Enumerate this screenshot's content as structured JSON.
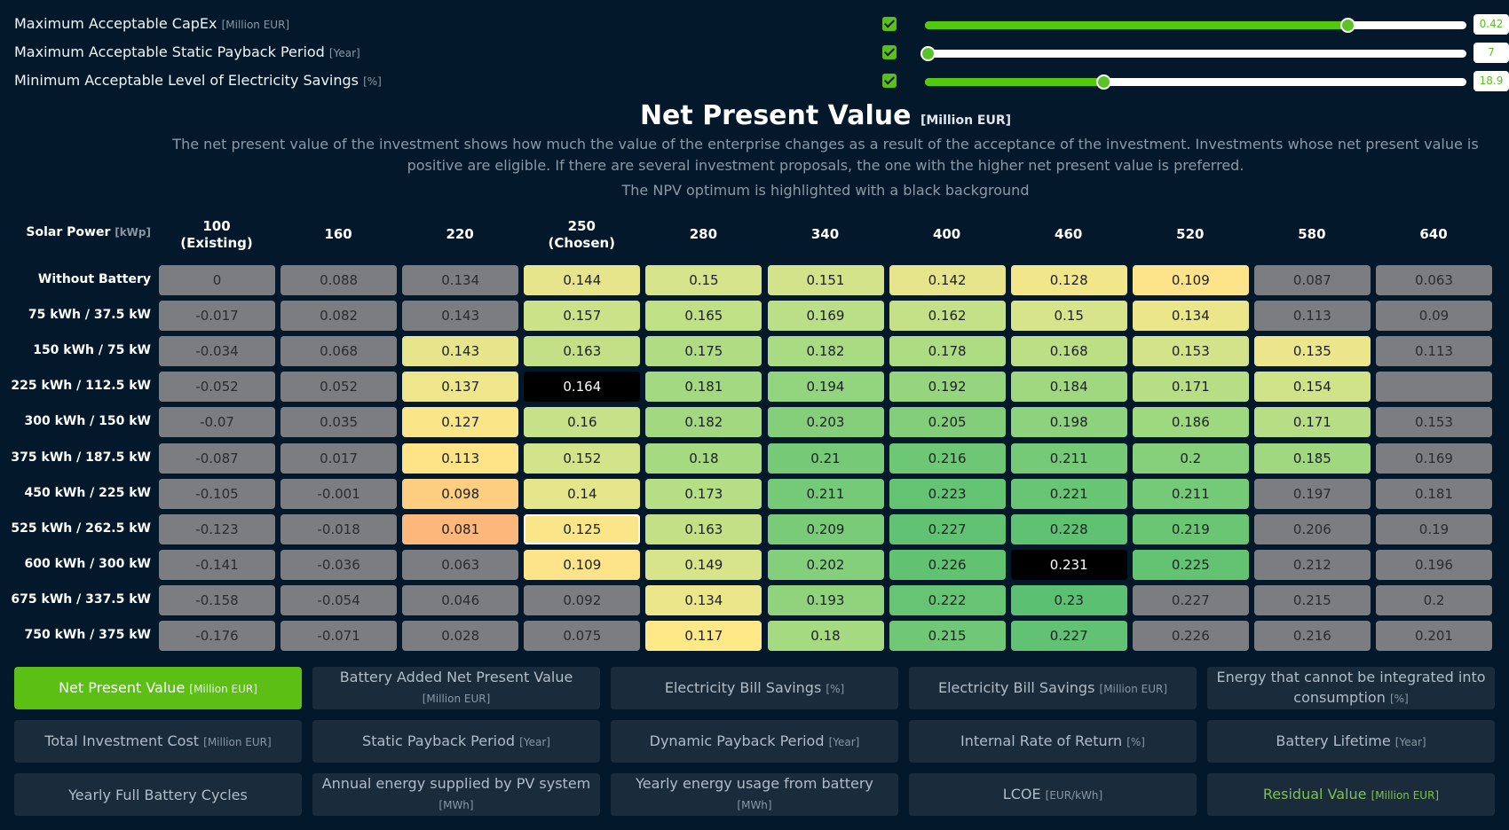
{
  "constraints": [
    {
      "label": "Maximum Acceptable CapEx",
      "unit": "[Million EUR]",
      "checked": true,
      "fraction": 0.78,
      "value": "0.42"
    },
    {
      "label": "Maximum Acceptable Static Payback Period",
      "unit": "[Year]",
      "checked": true,
      "fraction": 0.0,
      "value": "7"
    },
    {
      "label": "Minimum Acceptable Level of Electricity Savings",
      "unit": "[%]",
      "checked": true,
      "fraction": 0.33,
      "value": "18.9"
    }
  ],
  "header": {
    "title": "Net Present Value",
    "title_unit": "[Million EUR]",
    "description": "The net present value of the investment shows how much the value of the enterprise changes as a result of the acceptance of the investment. Investments whose net present value is positive are eligible. If there are several investment proposals, the one with the higher net present value is preferred.",
    "optimum_note": "The NPV optimum is highlighted with a black background"
  },
  "matrix": {
    "corner_label": "Solar Power",
    "corner_unit": "[kWp]",
    "columns": [
      {
        "value": "100",
        "sub": "(Existing)"
      },
      {
        "value": "160",
        "sub": ""
      },
      {
        "value": "220",
        "sub": ""
      },
      {
        "value": "250",
        "sub": "(Chosen)"
      },
      {
        "value": "280",
        "sub": ""
      },
      {
        "value": "340",
        "sub": ""
      },
      {
        "value": "400",
        "sub": ""
      },
      {
        "value": "460",
        "sub": ""
      },
      {
        "value": "520",
        "sub": ""
      },
      {
        "value": "580",
        "sub": ""
      },
      {
        "value": "640",
        "sub": ""
      }
    ],
    "rows": [
      {
        "label": "Without Battery",
        "values": [
          "0",
          "0.088",
          "0.134",
          "0.144",
          "0.15",
          "0.151",
          "0.142",
          "0.128",
          "0.109",
          "0.087",
          "0.063"
        ],
        "colors": [
          "",
          "",
          "",
          "#e6e58c",
          "#d5e48a",
          "#d2e38a",
          "#e6e58c",
          "#f2e68a",
          "#fde38a",
          "",
          ""
        ]
      },
      {
        "label": "75 kWh / 37.5 kW",
        "values": [
          "-0.017",
          "0.082",
          "0.143",
          "0.157",
          "0.165",
          "0.169",
          "0.162",
          "0.15",
          "0.134",
          "0.113",
          "0.09"
        ],
        "colors": [
          "",
          "",
          "",
          "#cbe288",
          "#c0e086",
          "#bbdf86",
          "#c5e187",
          "#d7e48a",
          "#ece68b",
          "",
          ""
        ]
      },
      {
        "label": "150 kWh / 75 kW",
        "values": [
          "-0.034",
          "0.068",
          "0.143",
          "0.163",
          "0.175",
          "0.182",
          "0.178",
          "0.168",
          "0.153",
          "0.135",
          "0.113"
        ],
        "colors": [
          "",
          "",
          "#e6e58c",
          "#c3e087",
          "#b0dd84",
          "#a8db82",
          "#addc83",
          "#bcdf86",
          "#d2e389",
          "#ebe68b",
          ""
        ]
      },
      {
        "label": "225 kWh / 112.5 kW",
        "values": [
          "-0.052",
          "0.052",
          "0.137",
          "0.164",
          "0.181",
          "0.194",
          "0.192",
          "0.184",
          "0.171",
          "0.154",
          ""
        ],
        "colors": [
          "",
          "",
          "#efe68b",
          "#000000",
          "#a3d981",
          "#93d47e",
          "#96d57e",
          "#a0d880",
          "#b8de85",
          "#d0e389",
          ""
        ]
      },
      {
        "label": "300 kWh / 150 kW",
        "values": [
          "-0.07",
          "0.035",
          "0.127",
          "0.16",
          "0.182",
          "0.203",
          "0.205",
          "0.198",
          "0.186",
          "0.171",
          "0.153"
        ],
        "colors": [
          "",
          "",
          "#fbe589",
          "#c6e187",
          "#a2d880",
          "#85cf7b",
          "#83ce7a",
          "#8dd27c",
          "#9ed87f",
          "#b8de85",
          ""
        ]
      },
      {
        "label": "375 kWh / 187.5 kW",
        "values": [
          "-0.087",
          "0.017",
          "0.113",
          "0.152",
          "0.18",
          "0.21",
          "0.216",
          "0.211",
          "0.2",
          "0.185",
          "0.169"
        ],
        "colors": [
          "",
          "",
          "#fee387",
          "#d3e389",
          "#a6da81",
          "#76ca77",
          "#6ec775",
          "#75ca77",
          "#87d07b",
          "#a0d880",
          ""
        ]
      },
      {
        "label": "450 kWh / 225 kW",
        "values": [
          "-0.105",
          "-0.001",
          "0.098",
          "0.14",
          "0.173",
          "0.211",
          "0.223",
          "0.221",
          "0.211",
          "0.197",
          "0.181"
        ],
        "colors": [
          "",
          "",
          "#fdce80",
          "#e5e58c",
          "#b6de85",
          "#75ca77",
          "#65c473",
          "#67c574",
          "#75ca77",
          "",
          ""
        ]
      },
      {
        "label": "525 kWh / 262.5 kW",
        "values": [
          "-0.123",
          "-0.018",
          "0.081",
          "0.125",
          "0.163",
          "0.209",
          "0.227",
          "0.228",
          "0.219",
          "0.206",
          "0.19"
        ],
        "colors": [
          "",
          "",
          "#fdb77a",
          "#fbe589",
          "#c3e087",
          "#79cb78",
          "#60c272",
          "#5fc172",
          "#6bc674",
          "",
          ""
        ]
      },
      {
        "label": "600 kWh / 300 kW",
        "values": [
          "-0.141",
          "-0.036",
          "0.063",
          "0.109",
          "0.149",
          "0.202",
          "0.226",
          "0.231",
          "0.225",
          "0.212",
          "0.196"
        ],
        "colors": [
          "",
          "",
          "",
          "#fde389",
          "#d8e48a",
          "#84cf7b",
          "#61c272",
          "#000000",
          "#63c373",
          "",
          ""
        ]
      },
      {
        "label": "675 kWh / 337.5 kW",
        "values": [
          "-0.158",
          "-0.054",
          "0.046",
          "0.092",
          "0.134",
          "0.193",
          "0.222",
          "0.23",
          "0.227",
          "0.215",
          "0.2"
        ],
        "colors": [
          "",
          "",
          "",
          "",
          "#ece68b",
          "#91d37d",
          "#66c474",
          "#5cc072",
          "",
          "",
          ""
        ]
      },
      {
        "label": "750 kWh / 375 kW",
        "values": [
          "-0.176",
          "-0.071",
          "0.028",
          "0.075",
          "0.117",
          "0.18",
          "0.215",
          "0.227",
          "0.226",
          "0.216",
          "0.201"
        ],
        "colors": [
          "",
          "",
          "",
          "",
          "#fee888",
          "#a6da81",
          "#70c876",
          "#60c272",
          "",
          "",
          ""
        ]
      }
    ]
  },
  "metrics": [
    {
      "label": "Net Present Value",
      "unit": "[Million EUR]",
      "state": "active"
    },
    {
      "label": "Battery Added Net Present Value",
      "unit": "[Million EUR]",
      "state": ""
    },
    {
      "label": "Electricity Bill Savings",
      "unit": "[%]",
      "state": ""
    },
    {
      "label": "Electricity Bill Savings",
      "unit": "[Million EUR]",
      "state": ""
    },
    {
      "label": "Energy that cannot be integrated into consumption",
      "unit": "[%]",
      "state": ""
    },
    {
      "label": "Total Investment Cost",
      "unit": "[Million EUR]",
      "state": ""
    },
    {
      "label": "Static Payback Period",
      "unit": "[Year]",
      "state": ""
    },
    {
      "label": "Dynamic Payback Period",
      "unit": "[Year]",
      "state": ""
    },
    {
      "label": "Internal Rate of Return",
      "unit": "[%]",
      "state": ""
    },
    {
      "label": "Battery Lifetime",
      "unit": "[Year]",
      "state": ""
    },
    {
      "label": "Yearly Full Battery Cycles",
      "unit": "",
      "state": ""
    },
    {
      "label": "Annual energy supplied by PV system",
      "unit": "[MWh]",
      "state": ""
    },
    {
      "label": "Yearly energy usage from battery",
      "unit": "[MWh]",
      "state": ""
    },
    {
      "label": "LCOE",
      "unit": "[EUR/kWh]",
      "state": ""
    },
    {
      "label": "Residual Value",
      "unit": "[Million EUR]",
      "state": "green"
    }
  ],
  "colors": {
    "accent": "#5cbf14",
    "background": "#03192b",
    "button_bg": "#1a2b3b",
    "grey_cell": "#7c7d80",
    "optimum": "#000000"
  }
}
